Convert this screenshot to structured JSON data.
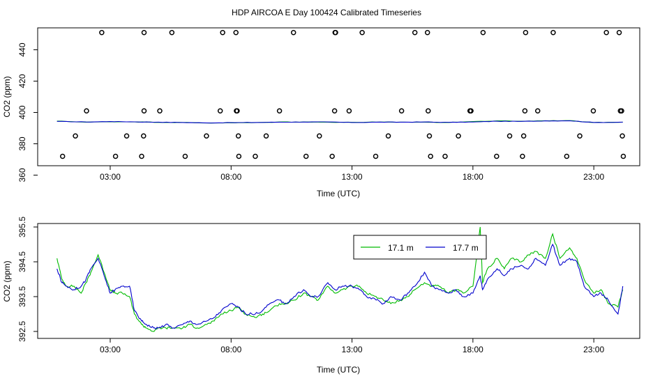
{
  "title": "HDP AIRCOA E  Day 100424  Calibrated Timeseries",
  "chart_data": [
    {
      "type": "scatter",
      "xlabel": "Time (UTC)",
      "ylabel": "CO2 (ppm)",
      "xlim": [
        0.0,
        24.9
      ],
      "ylim": [
        366,
        454
      ],
      "xticks": [
        3,
        8,
        13,
        18,
        23
      ],
      "xtick_labels": [
        "03:00",
        "08:00",
        "13:00",
        "18:00",
        "23:00"
      ],
      "yticks": [
        360,
        380,
        400,
        420,
        440
      ],
      "ytick_labels": [
        "360",
        "380",
        "400",
        "420",
        "440"
      ],
      "grid": false,
      "flag_points": [
        {
          "x": 1.03,
          "y": 372
        },
        {
          "x": 1.56,
          "y": 385
        },
        {
          "x": 2.02,
          "y": 401
        },
        {
          "x": 2.65,
          "y": 451
        },
        {
          "x": 3.22,
          "y": 372
        },
        {
          "x": 3.68,
          "y": 385
        },
        {
          "x": 4.3,
          "y": 372
        },
        {
          "x": 4.38,
          "y": 385
        },
        {
          "x": 4.4,
          "y": 401
        },
        {
          "x": 4.4,
          "y": 451
        },
        {
          "x": 5.05,
          "y": 401
        },
        {
          "x": 5.55,
          "y": 451
        },
        {
          "x": 6.1,
          "y": 372
        },
        {
          "x": 6.98,
          "y": 385
        },
        {
          "x": 7.55,
          "y": 401
        },
        {
          "x": 7.65,
          "y": 451
        },
        {
          "x": 8.2,
          "y": 451
        },
        {
          "x": 8.22,
          "y": 401
        },
        {
          "x": 8.25,
          "y": 401
        },
        {
          "x": 8.3,
          "y": 385
        },
        {
          "x": 8.32,
          "y": 372
        },
        {
          "x": 9.0,
          "y": 372
        },
        {
          "x": 9.45,
          "y": 385
        },
        {
          "x": 10.0,
          "y": 401
        },
        {
          "x": 10.58,
          "y": 451
        },
        {
          "x": 11.1,
          "y": 372
        },
        {
          "x": 11.65,
          "y": 385
        },
        {
          "x": 12.18,
          "y": 372
        },
        {
          "x": 12.28,
          "y": 401
        },
        {
          "x": 12.3,
          "y": 451
        },
        {
          "x": 12.32,
          "y": 451
        },
        {
          "x": 12.88,
          "y": 401
        },
        {
          "x": 13.42,
          "y": 451
        },
        {
          "x": 13.98,
          "y": 372
        },
        {
          "x": 14.5,
          "y": 385
        },
        {
          "x": 15.05,
          "y": 401
        },
        {
          "x": 15.6,
          "y": 451
        },
        {
          "x": 16.12,
          "y": 451
        },
        {
          "x": 16.15,
          "y": 401
        },
        {
          "x": 16.2,
          "y": 385
        },
        {
          "x": 16.25,
          "y": 372
        },
        {
          "x": 16.85,
          "y": 372
        },
        {
          "x": 17.4,
          "y": 385
        },
        {
          "x": 17.88,
          "y": 401
        },
        {
          "x": 17.92,
          "y": 401
        },
        {
          "x": 18.42,
          "y": 451
        },
        {
          "x": 18.98,
          "y": 372
        },
        {
          "x": 19.52,
          "y": 385
        },
        {
          "x": 20.05,
          "y": 372
        },
        {
          "x": 20.1,
          "y": 385
        },
        {
          "x": 20.15,
          "y": 401
        },
        {
          "x": 20.18,
          "y": 451
        },
        {
          "x": 20.68,
          "y": 401
        },
        {
          "x": 21.32,
          "y": 451
        },
        {
          "x": 21.88,
          "y": 372
        },
        {
          "x": 22.42,
          "y": 385
        },
        {
          "x": 22.98,
          "y": 401
        },
        {
          "x": 23.52,
          "y": 451
        },
        {
          "x": 24.05,
          "y": 451
        },
        {
          "x": 24.1,
          "y": 401
        },
        {
          "x": 24.15,
          "y": 401
        },
        {
          "x": 24.18,
          "y": 385
        },
        {
          "x": 24.22,
          "y": 372
        }
      ],
      "series": [
        {
          "color": "#0000cc",
          "x": [
            0.8,
            2.0,
            3.0,
            4.0,
            5.0,
            6.0,
            7.0,
            8.0,
            9.0,
            10.0,
            11.0,
            12.0,
            13.0,
            14.0,
            15.0,
            16.0,
            17.0,
            18.0,
            19.0,
            20.0,
            21.0,
            22.0,
            23.0,
            24.2
          ],
          "y": [
            394.3,
            393.9,
            394.2,
            394.0,
            393.8,
            393.6,
            393.3,
            393.5,
            393.6,
            393.8,
            393.9,
            393.9,
            393.6,
            393.8,
            393.8,
            393.9,
            393.7,
            393.9,
            394.4,
            394.3,
            394.6,
            394.7,
            393.6,
            393.8
          ]
        },
        {
          "color": "#00bb00",
          "x": [
            0.8,
            2.0,
            3.0,
            4.0,
            5.0,
            6.0,
            7.0,
            8.0,
            9.0,
            10.0,
            11.0,
            12.0,
            13.0,
            14.0,
            15.0,
            16.0,
            17.0,
            18.0,
            19.0,
            20.0,
            21.0,
            22.0,
            23.0,
            24.2
          ],
          "y": [
            394.5,
            393.8,
            394.1,
            394.0,
            393.7,
            393.6,
            393.3,
            393.4,
            393.5,
            393.9,
            393.9,
            393.8,
            393.7,
            393.8,
            393.8,
            393.8,
            393.6,
            394.2,
            394.6,
            394.4,
            394.7,
            394.8,
            393.6,
            393.8
          ]
        }
      ]
    },
    {
      "type": "line",
      "xlabel": "Time (UTC)",
      "ylabel": "CO2 (ppm)",
      "xlim": [
        0.0,
        24.9
      ],
      "ylim": [
        392.3,
        395.6
      ],
      "xticks": [
        3,
        8,
        13,
        18,
        23
      ],
      "xtick_labels": [
        "03:00",
        "08:00",
        "13:00",
        "18:00",
        "23:00"
      ],
      "yticks": [
        392.5,
        393.5,
        394.5,
        395.5
      ],
      "ytick_labels": [
        "392.5",
        "393.5",
        "394.5",
        "395.5"
      ],
      "grid": false,
      "legend": "top-center",
      "series": [
        {
          "name": "17.1 m",
          "color": "#00bb00",
          "x": [
            0.8,
            1.0,
            1.2,
            1.5,
            1.8,
            2.0,
            2.2,
            2.5,
            2.8,
            3.0,
            3.2,
            3.5,
            3.8,
            4.0,
            4.3,
            4.5,
            4.8,
            5.0,
            5.3,
            5.6,
            6.0,
            6.3,
            6.6,
            7.0,
            7.3,
            7.6,
            8.0,
            8.3,
            8.6,
            9.0,
            9.3,
            9.6,
            10.0,
            10.3,
            10.6,
            11.0,
            11.3,
            11.6,
            12.0,
            12.3,
            12.6,
            13.0,
            13.3,
            13.6,
            14.0,
            14.3,
            14.6,
            15.0,
            15.3,
            15.6,
            16.0,
            16.3,
            16.6,
            17.0,
            17.3,
            17.6,
            18.0,
            18.3,
            18.4,
            18.6,
            19.0,
            19.3,
            19.6,
            20.0,
            20.3,
            20.6,
            21.0,
            21.3,
            21.6,
            22.0,
            22.3,
            22.6,
            23.0,
            23.3,
            23.6,
            24.0,
            24.2
          ],
          "y": [
            394.6,
            394.0,
            393.8,
            393.8,
            393.6,
            393.9,
            394.2,
            394.7,
            394.1,
            393.7,
            393.6,
            393.6,
            393.5,
            393.0,
            392.7,
            392.6,
            392.5,
            392.6,
            392.6,
            392.6,
            392.6,
            392.7,
            392.6,
            392.7,
            392.8,
            393.0,
            393.1,
            393.2,
            393.0,
            392.9,
            393.0,
            393.1,
            393.3,
            393.3,
            393.4,
            393.6,
            393.5,
            393.4,
            393.8,
            393.6,
            393.7,
            393.8,
            393.8,
            393.6,
            393.5,
            393.4,
            393.3,
            393.4,
            393.5,
            393.7,
            393.9,
            393.8,
            393.8,
            393.6,
            393.7,
            393.6,
            393.8,
            395.5,
            393.9,
            394.3,
            394.6,
            394.3,
            394.6,
            394.5,
            394.7,
            394.8,
            394.6,
            395.3,
            394.6,
            394.9,
            394.6,
            394.0,
            393.6,
            393.7,
            393.3,
            393.2,
            393.7
          ]
        },
        {
          "name": "17.7 m",
          "color": "#0000cc",
          "x": [
            0.8,
            1.0,
            1.2,
            1.5,
            1.8,
            2.0,
            2.2,
            2.5,
            2.8,
            3.0,
            3.2,
            3.5,
            3.8,
            4.0,
            4.3,
            4.5,
            4.8,
            5.0,
            5.3,
            5.6,
            6.0,
            6.3,
            6.6,
            7.0,
            7.3,
            7.6,
            8.0,
            8.3,
            8.6,
            9.0,
            9.3,
            9.6,
            10.0,
            10.3,
            10.6,
            11.0,
            11.3,
            11.6,
            12.0,
            12.3,
            12.6,
            13.0,
            13.3,
            13.6,
            14.0,
            14.3,
            14.6,
            15.0,
            15.3,
            15.6,
            16.0,
            16.3,
            16.6,
            17.0,
            17.3,
            17.6,
            18.0,
            18.3,
            18.4,
            18.6,
            19.0,
            19.3,
            19.6,
            20.0,
            20.3,
            20.6,
            21.0,
            21.3,
            21.6,
            22.0,
            22.3,
            22.6,
            23.0,
            23.3,
            23.6,
            24.0,
            24.2
          ],
          "y": [
            394.3,
            393.9,
            393.8,
            393.7,
            393.8,
            394.0,
            394.3,
            394.6,
            394.0,
            393.6,
            393.7,
            393.8,
            393.8,
            393.1,
            392.8,
            392.7,
            392.6,
            392.6,
            392.7,
            392.6,
            392.7,
            392.8,
            392.7,
            392.8,
            392.9,
            393.1,
            393.3,
            393.2,
            393.0,
            393.0,
            393.1,
            393.3,
            393.4,
            393.3,
            393.5,
            393.7,
            393.5,
            393.5,
            393.9,
            393.7,
            393.8,
            393.8,
            393.7,
            393.5,
            393.4,
            393.3,
            393.5,
            393.4,
            393.6,
            393.8,
            394.2,
            393.8,
            393.7,
            393.6,
            393.7,
            393.5,
            393.6,
            394.1,
            393.7,
            394.0,
            394.3,
            394.1,
            394.3,
            394.4,
            394.3,
            394.6,
            394.4,
            395.0,
            394.4,
            394.6,
            394.5,
            393.8,
            393.5,
            393.6,
            393.4,
            393.0,
            393.8
          ]
        }
      ]
    }
  ]
}
